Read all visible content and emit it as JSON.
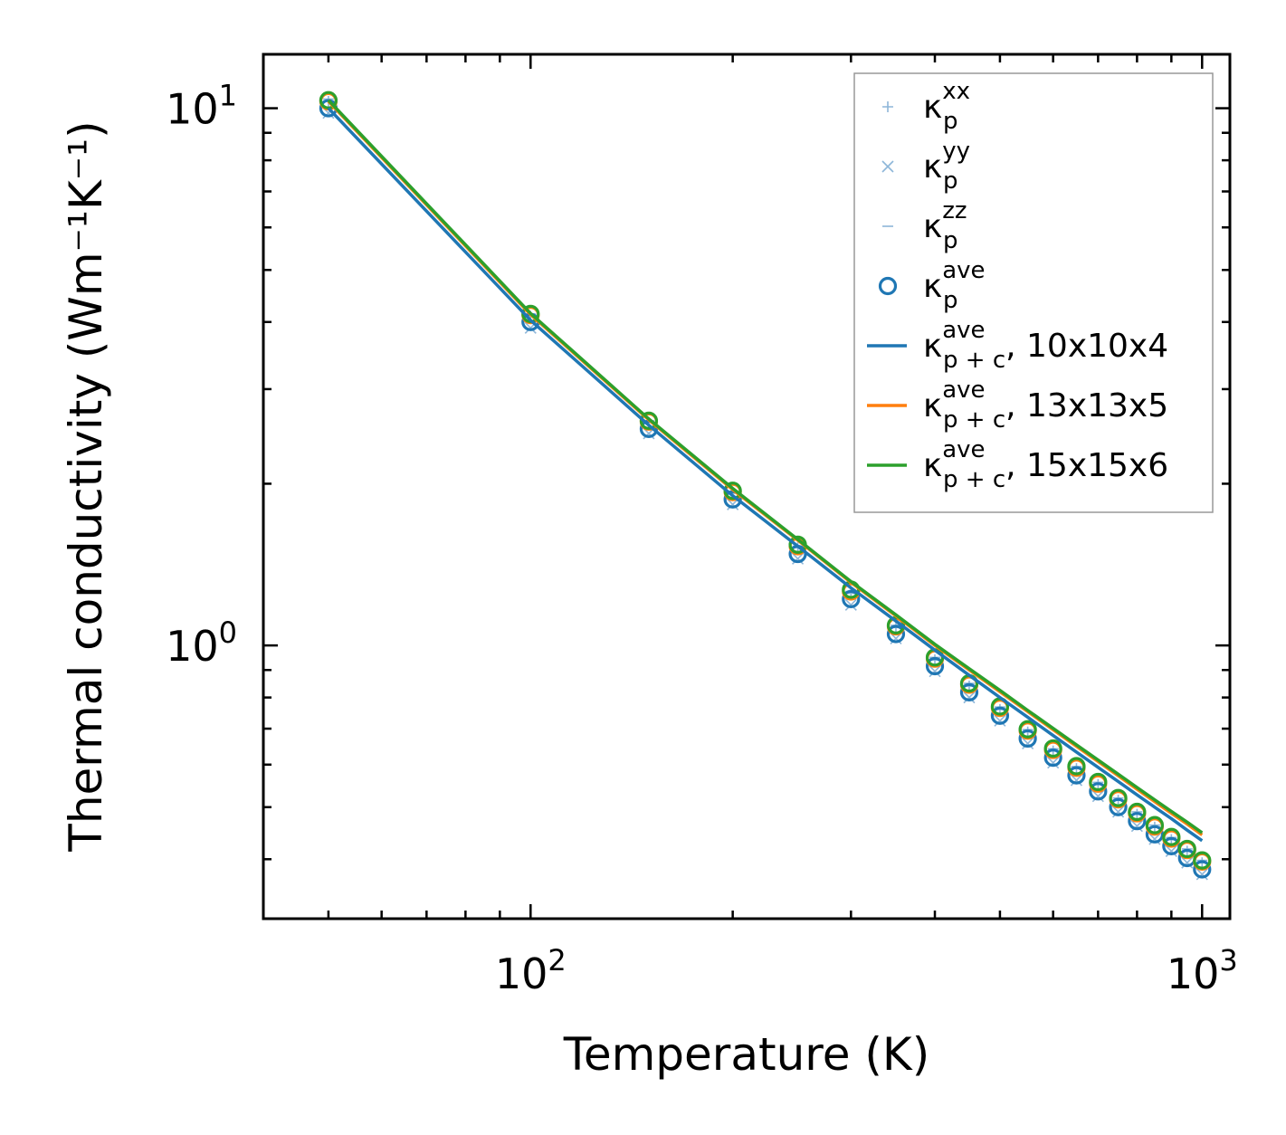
{
  "chart_data": {
    "type": "line",
    "title": "",
    "xlabel": "Temperature (K)",
    "ylabel": "Thermal conductivity (Wm⁻¹K⁻¹)",
    "xscale": "log",
    "yscale": "log",
    "xlim": [
      40,
      1100
    ],
    "ylim": [
      0.31,
      12.6
    ],
    "x_ticks": [
      {
        "base": "10",
        "exp": "2",
        "value": 100
      },
      {
        "base": "10",
        "exp": "3",
        "value": 1000
      }
    ],
    "y_ticks": [
      {
        "base": "10",
        "exp": "0",
        "value": 1
      },
      {
        "base": "10",
        "exp": "1",
        "value": 10
      }
    ],
    "x": [
      50,
      100,
      150,
      200,
      250,
      300,
      350,
      400,
      450,
      500,
      550,
      600,
      650,
      700,
      750,
      800,
      850,
      900,
      950,
      1000
    ],
    "markers": [
      {
        "name": "xx",
        "symbol": "plus",
        "color": "#8db6d9",
        "values": [
          10.3,
          4.1,
          2.6,
          1.92,
          1.52,
          1.25,
          1.08,
          0.94,
          0.84,
          0.76,
          0.69,
          0.636,
          0.59,
          0.551,
          0.515,
          0.485,
          0.459,
          0.435,
          0.414,
          0.394
        ]
      },
      {
        "name": "yy",
        "symbol": "x",
        "color": "#8db6d9",
        "values": [
          9.8,
          3.9,
          2.48,
          1.83,
          1.45,
          1.19,
          1.03,
          0.895,
          0.8,
          0.724,
          0.657,
          0.605,
          0.561,
          0.524,
          0.49,
          0.461,
          0.436,
          0.414,
          0.394,
          0.375
        ]
      },
      {
        "name": "zz",
        "symbol": "dash",
        "color": "#8db6d9",
        "values": [
          10.4,
          4.14,
          2.62,
          1.93,
          1.53,
          1.26,
          1.09,
          0.95,
          0.85,
          0.768,
          0.697,
          0.642,
          0.595,
          0.556,
          0.52,
          0.49,
          0.463,
          0.439,
          0.418,
          0.398
        ]
      },
      {
        "name": "ave 10x10x4",
        "symbol": "circle",
        "color": "#1f77b4",
        "values": [
          10.0,
          4.0,
          2.53,
          1.87,
          1.48,
          1.22,
          1.05,
          0.915,
          0.818,
          0.74,
          0.671,
          0.618,
          0.573,
          0.535,
          0.5,
          0.471,
          0.445,
          0.423,
          0.402,
          0.383
        ]
      },
      {
        "name": "ave 13x13x5",
        "symbol": "circle",
        "color": "#ff7f0e",
        "values": [
          10.3,
          4.12,
          2.61,
          1.93,
          1.53,
          1.26,
          1.085,
          0.945,
          0.845,
          0.765,
          0.694,
          0.639,
          0.592,
          0.553,
          0.517,
          0.487,
          0.46,
          0.437,
          0.416,
          0.396
        ]
      },
      {
        "name": "ave 15x15x6",
        "symbol": "circle",
        "color": "#2ca02c",
        "values": [
          10.35,
          4.14,
          2.62,
          1.94,
          1.54,
          1.27,
          1.09,
          0.95,
          0.85,
          0.77,
          0.698,
          0.643,
          0.596,
          0.557,
          0.52,
          0.49,
          0.463,
          0.44,
          0.418,
          0.398
        ]
      }
    ],
    "series": [
      {
        "name": "10x10x4",
        "color": "#1f77b4",
        "values": [
          10.0,
          4.03,
          2.57,
          1.9,
          1.53,
          1.28,
          1.11,
          0.98,
          0.88,
          0.8,
          0.735,
          0.68,
          0.633,
          0.593,
          0.558,
          0.527,
          0.5,
          0.476,
          0.453,
          0.433
        ]
      },
      {
        "name": "13x13x5",
        "color": "#ff7f0e",
        "values": [
          10.3,
          4.13,
          2.63,
          1.95,
          1.57,
          1.31,
          1.135,
          1.0,
          0.9,
          0.82,
          0.753,
          0.697,
          0.649,
          0.608,
          0.572,
          0.54,
          0.512,
          0.487,
          0.465,
          0.444
        ]
      },
      {
        "name": "15x15x6",
        "color": "#2ca02c",
        "values": [
          10.35,
          4.15,
          2.64,
          1.96,
          1.575,
          1.315,
          1.14,
          1.005,
          0.905,
          0.825,
          0.757,
          0.701,
          0.653,
          0.612,
          0.576,
          0.544,
          0.516,
          0.491,
          0.469,
          0.448
        ]
      }
    ],
    "legend": {
      "position": "top-right",
      "entries": [
        {
          "symbol": "plus",
          "color": "#8db6d9",
          "base": "κ",
          "sub": "p",
          "sup": "xx",
          "suffix": ""
        },
        {
          "symbol": "x",
          "color": "#8db6d9",
          "base": "κ",
          "sub": "p",
          "sup": "yy",
          "suffix": ""
        },
        {
          "symbol": "dash",
          "color": "#8db6d9",
          "base": "κ",
          "sub": "p",
          "sup": "zz",
          "suffix": ""
        },
        {
          "symbol": "circle",
          "color": "#1f77b4",
          "base": "κ",
          "sub": "p",
          "sup": "ave",
          "suffix": ""
        },
        {
          "symbol": "line",
          "color": "#1f77b4",
          "base": "κ",
          "sub": "p + c",
          "sup": "ave",
          "suffix": ", 10x10x4"
        },
        {
          "symbol": "line",
          "color": "#ff7f0e",
          "base": "κ",
          "sub": "p + c",
          "sup": "ave",
          "suffix": ", 13x13x5"
        },
        {
          "symbol": "line",
          "color": "#2ca02c",
          "base": "κ",
          "sub": "p + c",
          "sup": "ave",
          "suffix": ", 15x15x6"
        }
      ]
    }
  }
}
